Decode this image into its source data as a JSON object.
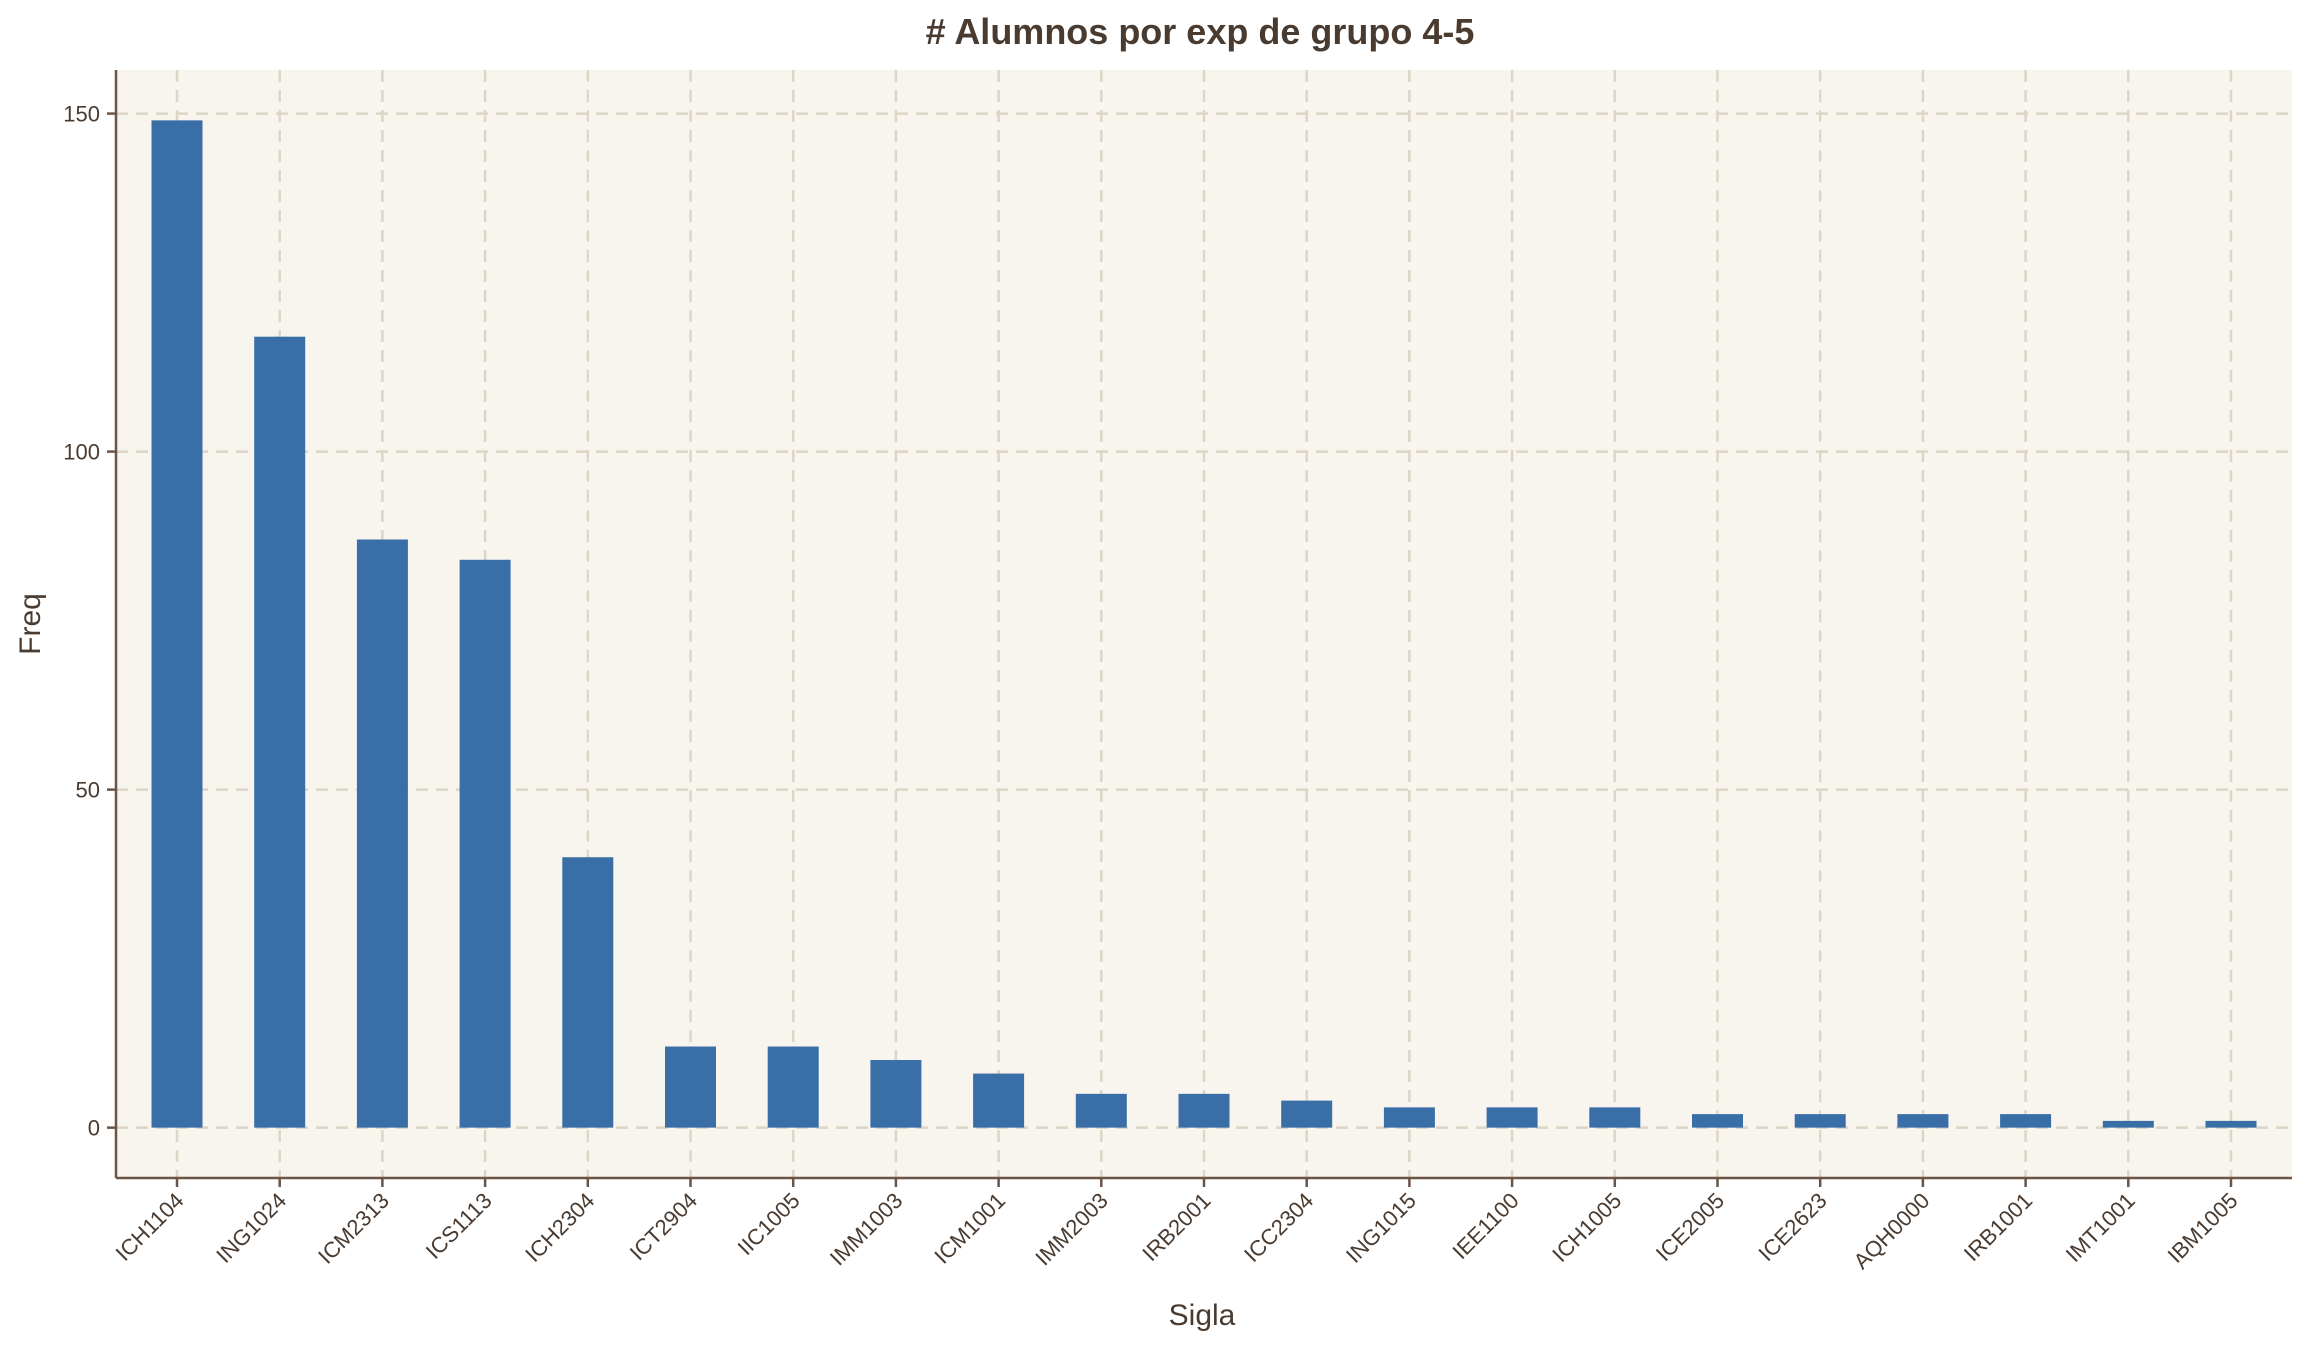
{
  "colors": {
    "plot_background": "#f8f5ef",
    "page_background": "#ffffff",
    "bar": "#3a6ea6",
    "grid": "#ddd5c6",
    "axis": "#6b5546",
    "text": "#4a3b30"
  },
  "chart_data": {
    "type": "bar",
    "title": "# Alumnos por exp de grupo 4-5",
    "xlabel": "Sigla",
    "ylabel": "Freq",
    "categories": [
      "ICH1104",
      "ING1024",
      "ICM2313",
      "ICS1113",
      "ICH2304",
      "ICT2904",
      "IIC1005",
      "IMM1003",
      "ICM1001",
      "IMM2003",
      "IRB2001",
      "ICC2304",
      "ING1015",
      "IEE1100",
      "ICH1005",
      "ICE2005",
      "ICE2623",
      "AQH0000",
      "IRB1001",
      "IMT1001",
      "IBM1005"
    ],
    "values": [
      149,
      117,
      87,
      84,
      40,
      12,
      12,
      10,
      8,
      5,
      5,
      4,
      3,
      3,
      3,
      2,
      2,
      2,
      2,
      1,
      1
    ],
    "yticks": [
      0,
      50,
      100,
      150
    ],
    "ylim": [
      -7.45,
      156.45
    ],
    "grid": true,
    "grid_style": "dashed",
    "legend": "none"
  }
}
